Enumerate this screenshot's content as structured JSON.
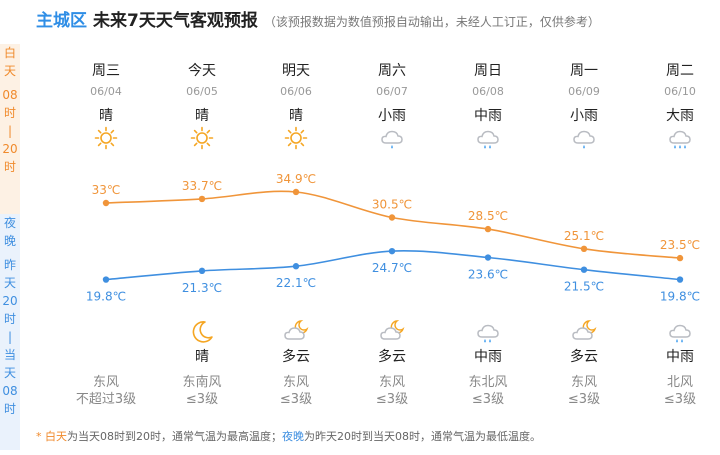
{
  "header": {
    "region": "主城区",
    "title": "未来7天天气客观预报",
    "note": "（该预报数据为数值预报自动输出，未经人工订正，仅供参考）"
  },
  "side_labels": {
    "day": [
      "白",
      "天",
      "",
      "08",
      "时",
      "|",
      "20",
      "时"
    ],
    "night": [
      "夜",
      "晚",
      "",
      "昨",
      "天",
      "20",
      "时",
      "|",
      "当",
      "天",
      "08",
      "时"
    ]
  },
  "days": [
    {
      "weekday": "周三",
      "date": "06/04",
      "day_weather": "晴",
      "day_icon": "sun-icon",
      "night_weather": "",
      "night_icon": "",
      "wind_dir": "东风",
      "wind_level": "不超过3级"
    },
    {
      "weekday": "今天",
      "date": "06/05",
      "day_weather": "晴",
      "day_icon": "sun-icon",
      "night_weather": "晴",
      "night_icon": "moon-icon",
      "wind_dir": "东南风",
      "wind_level": "≤3级"
    },
    {
      "weekday": "明天",
      "date": "06/06",
      "day_weather": "晴",
      "day_icon": "sun-icon",
      "night_weather": "多云",
      "night_icon": "partly-cloudy-night-icon",
      "wind_dir": "东风",
      "wind_level": "≤3级"
    },
    {
      "weekday": "周六",
      "date": "06/07",
      "day_weather": "小雨",
      "day_icon": "light-rain-icon",
      "night_weather": "多云",
      "night_icon": "partly-cloudy-night-icon",
      "wind_dir": "东风",
      "wind_level": "≤3级"
    },
    {
      "weekday": "周日",
      "date": "06/08",
      "day_weather": "中雨",
      "day_icon": "moderate-rain-icon",
      "night_weather": "中雨",
      "night_icon": "moderate-rain-icon",
      "wind_dir": "东北风",
      "wind_level": "≤3级"
    },
    {
      "weekday": "周一",
      "date": "06/09",
      "day_weather": "小雨",
      "day_icon": "light-rain-icon",
      "night_weather": "多云",
      "night_icon": "partly-cloudy-night-icon",
      "wind_dir": "东风",
      "wind_level": "≤3级"
    },
    {
      "weekday": "周二",
      "date": "06/10",
      "day_weather": "大雨",
      "day_icon": "heavy-rain-icon",
      "night_weather": "中雨",
      "night_icon": "moderate-rain-icon",
      "wind_dir": "北风",
      "wind_level": "≤3级"
    }
  ],
  "temperatures": {
    "high": [
      33,
      33.7,
      34.9,
      30.5,
      28.5,
      25.1,
      23.5
    ],
    "low": [
      19.8,
      21.3,
      22.1,
      24.7,
      23.6,
      21.5,
      19.8
    ],
    "unit": "℃"
  },
  "footnote": {
    "star": "* ",
    "day_kw": "白天",
    "day_text": "为当天08时到20时，通常气温为最高温度；",
    "night_kw": "夜晚",
    "night_text": "为昨天20时到当天08时，通常气温为最低温度。"
  },
  "colors": {
    "day_line": "#f0953a",
    "night_line": "#3f8fe0",
    "sun": "#f5a623",
    "cloud": "#b9bcc2",
    "rain": "#4aa3f0"
  }
}
